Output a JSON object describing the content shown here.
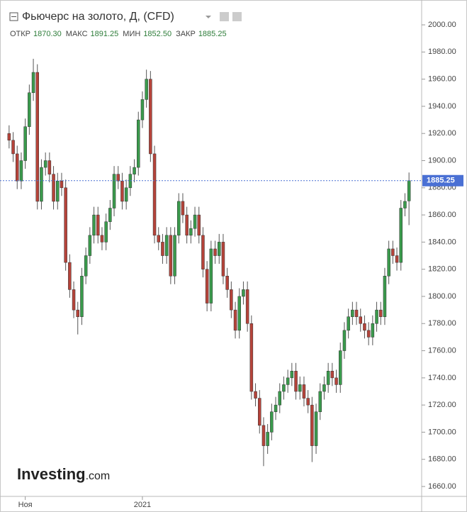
{
  "chart_data": {
    "type": "candlestick",
    "title": "Фьючерс на золото, Д, (CFD)",
    "ohlc_header": [
      {
        "name": "ОТКР",
        "text": "1870.30"
      },
      {
        "name": "МАКС",
        "text": "1891.25"
      },
      {
        "name": "МИН",
        "text": "1852.50"
      },
      {
        "name": "ЗАКР",
        "text": "1885.25"
      }
    ],
    "watermark": [
      "Investing",
      ".com"
    ],
    "categories": [
      null,
      null,
      null,
      null,
      "Ноя",
      null,
      null,
      null,
      null,
      null,
      null,
      null,
      null,
      null,
      null,
      null,
      null,
      null,
      null,
      null,
      null,
      null,
      null,
      null,
      null,
      null,
      null,
      null,
      null,
      null,
      null,
      null,
      null,
      "2021",
      null,
      null,
      null,
      null,
      null,
      null,
      null,
      null,
      null,
      null,
      null,
      null,
      null,
      null,
      null,
      null,
      null,
      null,
      null,
      null,
      null,
      null,
      null,
      null,
      null,
      null,
      null,
      null,
      null,
      null,
      null,
      null,
      null,
      null,
      null,
      null,
      null,
      null,
      null,
      null,
      null,
      null,
      null,
      null,
      null,
      null,
      null,
      null,
      null,
      null,
      null,
      null,
      null,
      null,
      null,
      null,
      null,
      null,
      null,
      null,
      null,
      null,
      null,
      null,
      null,
      null
    ],
    "open": [
      1920,
      1915,
      1905,
      1885,
      1900,
      1925,
      1950,
      1965,
      1870,
      1895,
      1900,
      1890,
      1870,
      1885,
      1880,
      1825,
      1805,
      1790,
      1785,
      1815,
      1830,
      1845,
      1860,
      1845,
      1840,
      1855,
      1865,
      1890,
      1885,
      1870,
      1880,
      1890,
      1895,
      1930,
      1945,
      1960,
      1905,
      1845,
      1840,
      1830,
      1845,
      1815,
      1845,
      1870,
      1860,
      1845,
      1850,
      1860,
      1845,
      1820,
      1795,
      1835,
      1830,
      1840,
      1815,
      1805,
      1790,
      1775,
      1800,
      1805,
      1780,
      1730,
      1725,
      1705,
      1690,
      1700,
      1715,
      1720,
      1730,
      1735,
      1740,
      1745,
      1730,
      1735,
      1725,
      1720,
      1690,
      1715,
      1730,
      1735,
      1745,
      1740,
      1735,
      1760,
      1775,
      1785,
      1790,
      1785,
      1780,
      1775,
      1770,
      1780,
      1790,
      1785,
      1815,
      1835,
      1830,
      1825,
      1865,
      1870.3
    ],
    "high": [
      1926,
      1921,
      1911,
      1906,
      1931,
      1956,
      1975,
      1971,
      1901,
      1906,
      1906,
      1896,
      1891,
      1891,
      1886,
      1831,
      1811,
      1796,
      1821,
      1836,
      1851,
      1866,
      1866,
      1851,
      1861,
      1871,
      1896,
      1896,
      1891,
      1886,
      1896,
      1901,
      1936,
      1951,
      1967,
      1966,
      1911,
      1851,
      1846,
      1851,
      1851,
      1851,
      1876,
      1876,
      1866,
      1856,
      1866,
      1866,
      1851,
      1826,
      1841,
      1841,
      1846,
      1846,
      1821,
      1811,
      1796,
      1806,
      1811,
      1811,
      1786,
      1736,
      1731,
      1711,
      1706,
      1721,
      1726,
      1736,
      1741,
      1746,
      1751,
      1751,
      1741,
      1741,
      1731,
      1726,
      1721,
      1736,
      1741,
      1751,
      1751,
      1746,
      1766,
      1781,
      1791,
      1796,
      1796,
      1791,
      1786,
      1781,
      1786,
      1796,
      1796,
      1821,
      1841,
      1841,
      1836,
      1871,
      1876,
      1891.25
    ],
    "low": [
      1909,
      1899,
      1879,
      1879,
      1894,
      1919,
      1944,
      1864,
      1864,
      1889,
      1884,
      1864,
      1864,
      1874,
      1819,
      1799,
      1784,
      1772,
      1779,
      1809,
      1824,
      1839,
      1839,
      1834,
      1834,
      1849,
      1859,
      1879,
      1864,
      1864,
      1874,
      1884,
      1889,
      1924,
      1939,
      1899,
      1839,
      1834,
      1824,
      1824,
      1809,
      1809,
      1839,
      1854,
      1839,
      1839,
      1844,
      1839,
      1814,
      1789,
      1789,
      1824,
      1824,
      1809,
      1799,
      1784,
      1769,
      1769,
      1794,
      1774,
      1724,
      1719,
      1699,
      1675,
      1684,
      1694,
      1709,
      1714,
      1724,
      1729,
      1734,
      1724,
      1724,
      1719,
      1714,
      1678,
      1684,
      1709,
      1724,
      1729,
      1734,
      1729,
      1729,
      1754,
      1769,
      1779,
      1779,
      1774,
      1769,
      1764,
      1764,
      1774,
      1779,
      1779,
      1809,
      1824,
      1819,
      1819,
      1859,
      1852.5
    ],
    "close": [
      1915,
      1905,
      1885,
      1900,
      1925,
      1950,
      1965,
      1870,
      1895,
      1900,
      1890,
      1870,
      1885,
      1880,
      1825,
      1805,
      1790,
      1785,
      1815,
      1830,
      1845,
      1860,
      1845,
      1840,
      1855,
      1865,
      1890,
      1885,
      1870,
      1880,
      1890,
      1895,
      1930,
      1945,
      1960,
      1905,
      1845,
      1840,
      1830,
      1845,
      1815,
      1845,
      1870,
      1860,
      1845,
      1850,
      1860,
      1845,
      1820,
      1795,
      1835,
      1830,
      1840,
      1815,
      1805,
      1790,
      1775,
      1800,
      1805,
      1780,
      1730,
      1725,
      1705,
      1690,
      1700,
      1715,
      1720,
      1730,
      1735,
      1740,
      1745,
      1730,
      1735,
      1725,
      1720,
      1690,
      1715,
      1730,
      1735,
      1745,
      1740,
      1735,
      1760,
      1775,
      1785,
      1790,
      1785,
      1780,
      1775,
      1770,
      1780,
      1790,
      1785,
      1815,
      1835,
      1830,
      1825,
      1865,
      1870,
      1885.25
    ],
    "up_color": "#3a9a4c",
    "down_color": "#b5433a",
    "last_price_color": "#4a70d4",
    "ylim": [
      1652.7,
      2018.3
    ],
    "yticks": [
      {
        "value": 1660,
        "label": "1660.00"
      },
      {
        "value": 1680,
        "label": "1680.00"
      },
      {
        "value": 1700,
        "label": "1700.00"
      },
      {
        "value": 1720,
        "label": "1720.00"
      },
      {
        "value": 1740,
        "label": "1740.00"
      },
      {
        "value": 1760,
        "label": "1760.00"
      },
      {
        "value": 1780,
        "label": "1780.00"
      },
      {
        "value": 1800,
        "label": "1800.00"
      },
      {
        "value": 1820,
        "label": "1820.00"
      },
      {
        "value": 1840,
        "label": "1840.00"
      },
      {
        "value": 1860,
        "label": "1860.00"
      },
      {
        "value": 1880,
        "label": "1880.00"
      },
      {
        "value": 1900,
        "label": "1900.00"
      },
      {
        "value": 1920,
        "label": "1920.00"
      },
      {
        "value": 1940,
        "label": "1940.00"
      },
      {
        "value": 1960,
        "label": "1960.00"
      },
      {
        "value": 1980,
        "label": "1980.00"
      },
      {
        "value": 2000,
        "label": "2000.00"
      }
    ]
  }
}
